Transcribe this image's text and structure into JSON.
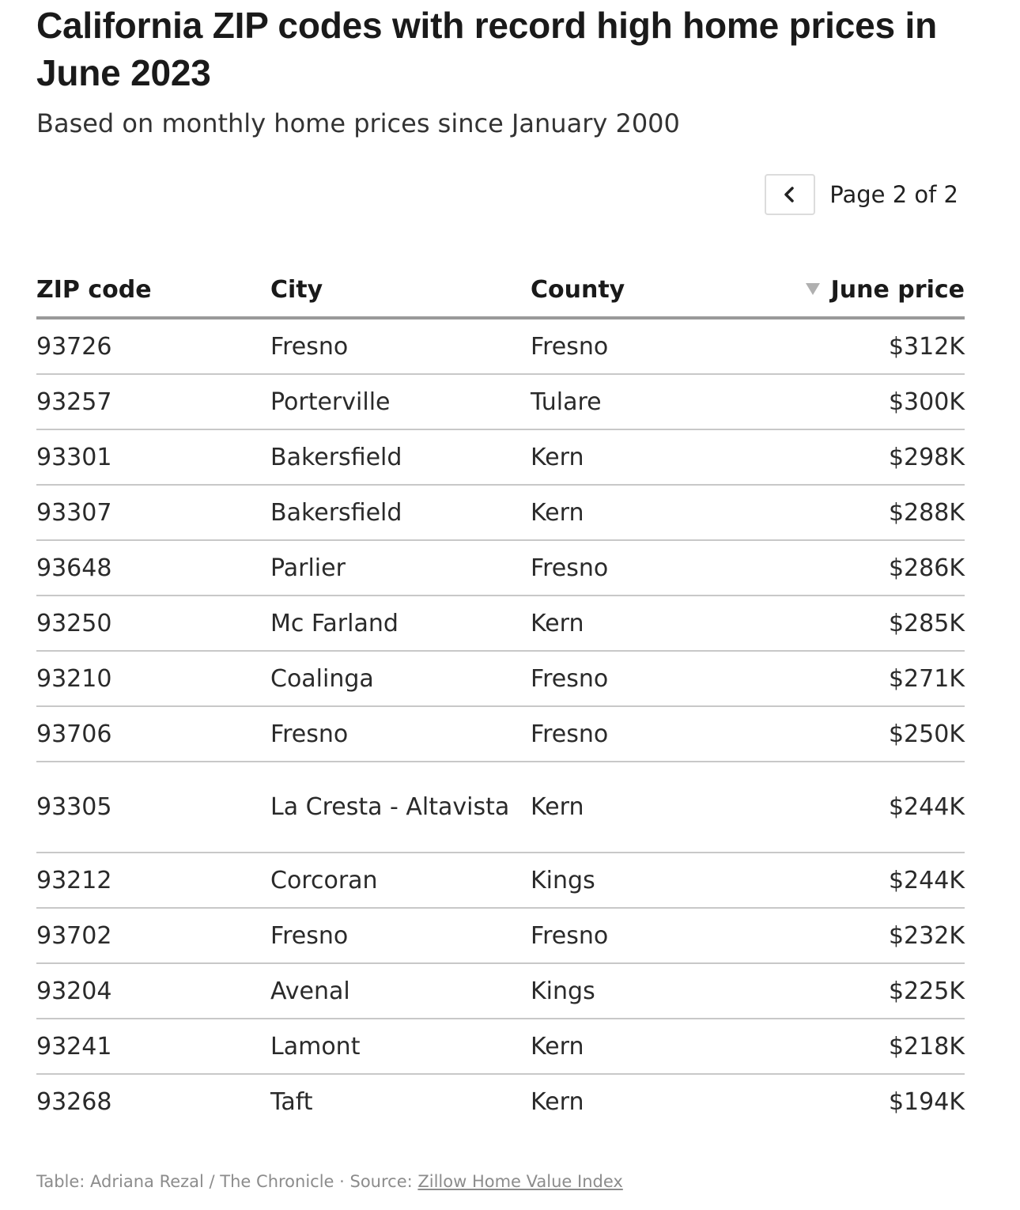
{
  "header": {
    "title": "California ZIP codes with record high home prices in June 2023",
    "subtitle": "Based on monthly home prices since January 2000"
  },
  "pagination": {
    "label": "Page 2 of 2",
    "prev_icon": "chevron-left-icon"
  },
  "table": {
    "columns": {
      "zip": "ZIP code",
      "city": "City",
      "county": "County",
      "price": "June price"
    },
    "sort_icon": "sort-descending-icon",
    "rows": [
      {
        "zip": "93726",
        "city": "Fresno",
        "county": "Fresno",
        "price": "$312K"
      },
      {
        "zip": "93257",
        "city": "Porterville",
        "county": "Tulare",
        "price": "$300K"
      },
      {
        "zip": "93301",
        "city": "Bakersfield",
        "county": "Kern",
        "price": "$298K"
      },
      {
        "zip": "93307",
        "city": "Bakersfield",
        "county": "Kern",
        "price": "$288K"
      },
      {
        "zip": "93648",
        "city": "Parlier",
        "county": "Fresno",
        "price": "$286K"
      },
      {
        "zip": "93250",
        "city": "Mc Farland",
        "county": "Kern",
        "price": "$285K"
      },
      {
        "zip": "93210",
        "city": "Coalinga",
        "county": "Fresno",
        "price": "$271K"
      },
      {
        "zip": "93706",
        "city": "Fresno",
        "county": "Fresno",
        "price": "$250K"
      },
      {
        "zip": "93305",
        "city": "La Cresta - Altavista",
        "county": "Kern",
        "price": "$244K"
      },
      {
        "zip": "93212",
        "city": "Corcoran",
        "county": "Kings",
        "price": "$244K"
      },
      {
        "zip": "93702",
        "city": "Fresno",
        "county": "Fresno",
        "price": "$232K"
      },
      {
        "zip": "93204",
        "city": "Avenal",
        "county": "Kings",
        "price": "$225K"
      },
      {
        "zip": "93241",
        "city": "Lamont",
        "county": "Kern",
        "price": "$218K"
      },
      {
        "zip": "93268",
        "city": "Taft",
        "county": "Kern",
        "price": "$194K"
      }
    ]
  },
  "footer": {
    "credit": "Table: Adriana Rezal / The Chronicle · Source: ",
    "source_link": "Zillow Home Value Index"
  }
}
